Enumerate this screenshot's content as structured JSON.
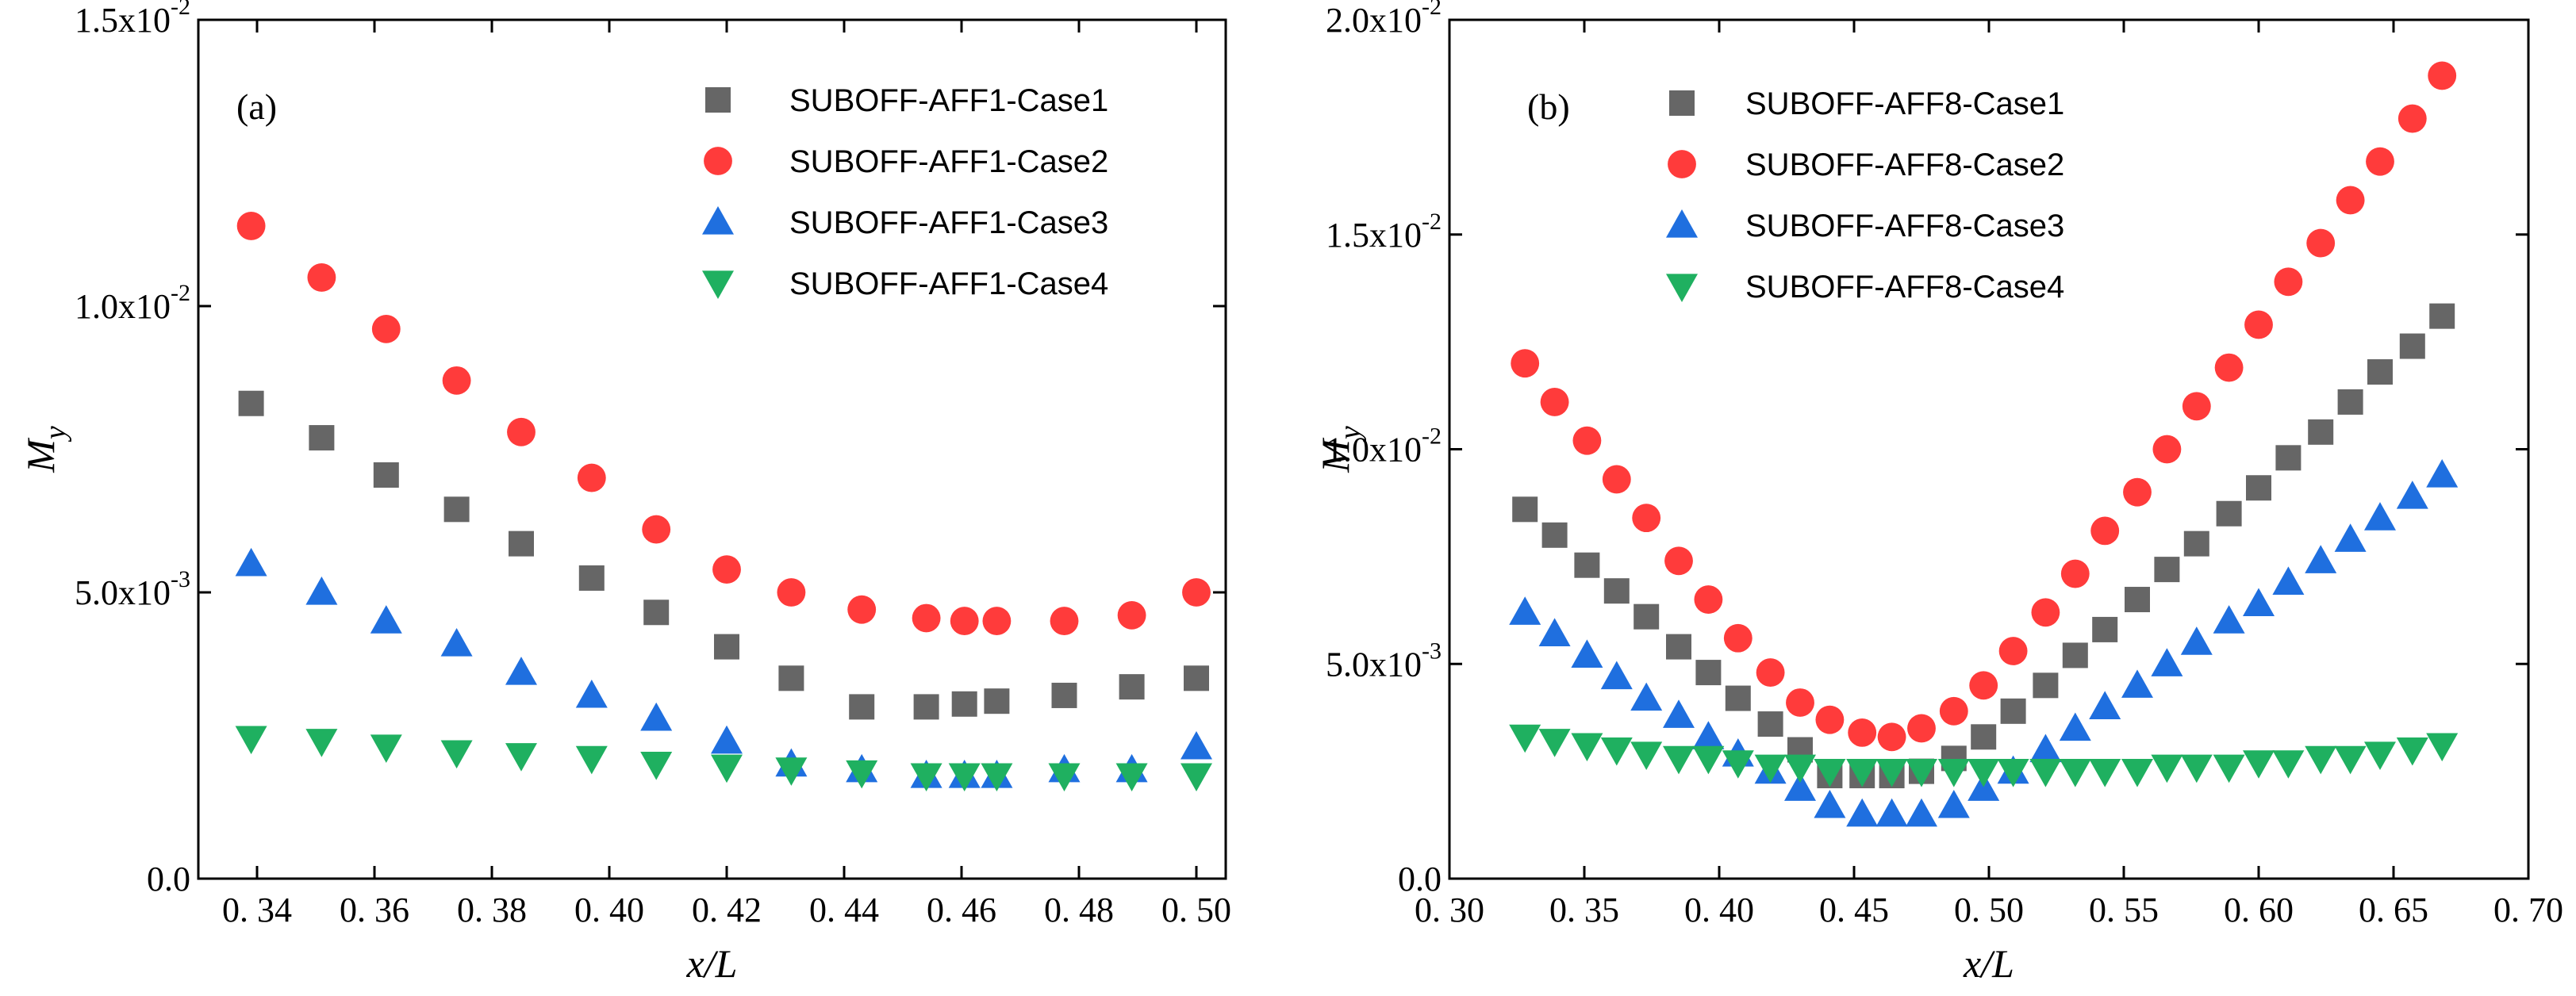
{
  "chart_data": [
    {
      "type": "scatter",
      "panel_label": "(a)",
      "xlabel": "x/L",
      "ylabel": "M",
      "ylabel_sub": "y",
      "xlim": [
        0.33,
        0.505
      ],
      "ylim": [
        0,
        0.015
      ],
      "xticks": [
        0.34,
        0.36,
        0.38,
        0.4,
        0.42,
        0.44,
        0.46,
        0.48,
        0.5
      ],
      "xtick_labels": [
        "0. 34",
        "0. 36",
        "0. 38",
        "0. 40",
        "0. 42",
        "0. 44",
        "0. 46",
        "0. 48",
        "0. 50"
      ],
      "yticks": [
        0,
        0.005,
        0.01,
        0.015
      ],
      "ytick_labels": [
        {
          "mant": "0.0",
          "exp": ""
        },
        {
          "mant": "5.0x10",
          "exp": "-3"
        },
        {
          "mant": "1.0x10",
          "exp": "-2"
        },
        {
          "mant": "1.5x10",
          "exp": "-2"
        }
      ],
      "legend_position": "top-right",
      "grid": false,
      "x": [
        0.339,
        0.351,
        0.362,
        0.374,
        0.385,
        0.397,
        0.408,
        0.42,
        0.431,
        0.443,
        0.454,
        0.4605,
        0.466,
        0.4775,
        0.489,
        0.5
      ],
      "series": [
        {
          "name": "SUBOFF-AFF1-Case1",
          "marker": "square",
          "color": "#666666",
          "values": [
            0.0083,
            0.0077,
            0.00705,
            0.00645,
            0.00585,
            0.00525,
            0.00465,
            0.00405,
            0.0035,
            0.003,
            0.003,
            0.00305,
            0.0031,
            0.0032,
            0.00335,
            0.0035
          ]
        },
        {
          "name": "SUBOFF-AFF1-Case2",
          "marker": "circle",
          "color": "#ff3b3b",
          "values": [
            0.0114,
            0.0105,
            0.0096,
            0.0087,
            0.0078,
            0.007,
            0.0061,
            0.0054,
            0.005,
            0.0047,
            0.00455,
            0.0045,
            0.0045,
            0.0045,
            0.0046,
            0.005
          ]
        },
        {
          "name": "SUBOFF-AFF1-Case3",
          "marker": "triangle-up",
          "color": "#1f6fdf",
          "values": [
            0.0055,
            0.005,
            0.0045,
            0.0041,
            0.0036,
            0.0032,
            0.0028,
            0.0024,
            0.002,
            0.0019,
            0.0018,
            0.0018,
            0.0018,
            0.0019,
            0.0019,
            0.0023
          ]
        },
        {
          "name": "SUBOFF-AFF1-Case4",
          "marker": "triangle-down",
          "color": "#1fb060",
          "values": [
            0.00245,
            0.0024,
            0.0023,
            0.0022,
            0.00215,
            0.0021,
            0.002,
            0.00195,
            0.0019,
            0.00185,
            0.0018,
            0.0018,
            0.0018,
            0.0018,
            0.0018,
            0.0018
          ]
        }
      ]
    },
    {
      "type": "scatter",
      "panel_label": "(b)",
      "xlabel": "x/L",
      "ylabel": "M",
      "ylabel_sub": "y",
      "xlim": [
        0.3,
        0.7
      ],
      "ylim": [
        0,
        0.02
      ],
      "xticks": [
        0.3,
        0.35,
        0.4,
        0.45,
        0.5,
        0.55,
        0.6,
        0.65,
        0.7
      ],
      "xtick_labels": [
        "0. 30",
        "0. 35",
        "0. 40",
        "0. 45",
        "0. 50",
        "0. 55",
        "0. 60",
        "0. 65",
        "0. 70"
      ],
      "yticks": [
        0,
        0.005,
        0.01,
        0.015,
        0.02
      ],
      "ytick_labels": [
        {
          "mant": "0.0",
          "exp": ""
        },
        {
          "mant": "5.0x10",
          "exp": "-3"
        },
        {
          "mant": "1.0x10",
          "exp": "-2"
        },
        {
          "mant": "1.5x10",
          "exp": "-2"
        },
        {
          "mant": "2.0x10",
          "exp": "-2"
        }
      ],
      "legend_position": "top-left",
      "grid": false,
      "x": [
        0.328,
        0.339,
        0.351,
        0.362,
        0.373,
        0.385,
        0.396,
        0.407,
        0.419,
        0.43,
        0.441,
        0.453,
        0.464,
        0.475,
        0.487,
        0.498,
        0.509,
        0.521,
        0.532,
        0.543,
        0.555,
        0.566,
        0.577,
        0.589,
        0.6,
        0.611,
        0.623,
        0.634,
        0.645,
        0.657,
        0.668
      ],
      "series": [
        {
          "name": "SUBOFF-AFF8-Case1",
          "marker": "square",
          "color": "#666666",
          "values": [
            0.0086,
            0.008,
            0.0073,
            0.0067,
            0.0061,
            0.0054,
            0.0048,
            0.0042,
            0.0036,
            0.003,
            0.0024,
            0.0024,
            0.0024,
            0.0025,
            0.0028,
            0.0033,
            0.0039,
            0.0045,
            0.0052,
            0.0058,
            0.0065,
            0.0072,
            0.0078,
            0.0085,
            0.0091,
            0.0098,
            0.0104,
            0.0111,
            0.0118,
            0.0124,
            0.0131
          ]
        },
        {
          "name": "SUBOFF-AFF8-Case2",
          "marker": "circle",
          "color": "#ff3b3b",
          "values": [
            0.012,
            0.0111,
            0.0102,
            0.0093,
            0.0084,
            0.0074,
            0.0065,
            0.0056,
            0.0048,
            0.0041,
            0.0037,
            0.0034,
            0.0033,
            0.0035,
            0.0039,
            0.0045,
            0.0053,
            0.0062,
            0.0071,
            0.0081,
            0.009,
            0.01,
            0.011,
            0.0119,
            0.0129,
            0.0139,
            0.0148,
            0.0158,
            0.0167,
            0.0177,
            0.0187
          ]
        },
        {
          "name": "SUBOFF-AFF8-Case3",
          "marker": "triangle-up",
          "color": "#1f6fdf",
          "values": [
            0.0062,
            0.0057,
            0.0052,
            0.0047,
            0.0042,
            0.0038,
            0.0033,
            0.0029,
            0.0025,
            0.0021,
            0.0017,
            0.0015,
            0.0015,
            0.0015,
            0.0017,
            0.0021,
            0.0025,
            0.003,
            0.0035,
            0.004,
            0.0045,
            0.005,
            0.0055,
            0.006,
            0.0064,
            0.0069,
            0.0074,
            0.0079,
            0.0084,
            0.0089,
            0.0094
          ]
        },
        {
          "name": "SUBOFF-AFF8-Case4",
          "marker": "triangle-down",
          "color": "#1fb060",
          "values": [
            0.0033,
            0.0032,
            0.0031,
            0.003,
            0.0029,
            0.0028,
            0.0028,
            0.0027,
            0.0026,
            0.0026,
            0.0025,
            0.0025,
            0.0025,
            0.0025,
            0.0025,
            0.0025,
            0.0025,
            0.0025,
            0.0025,
            0.0025,
            0.0025,
            0.0026,
            0.0026,
            0.0026,
            0.0027,
            0.0027,
            0.0028,
            0.0028,
            0.0029,
            0.003,
            0.0031
          ]
        }
      ]
    }
  ]
}
